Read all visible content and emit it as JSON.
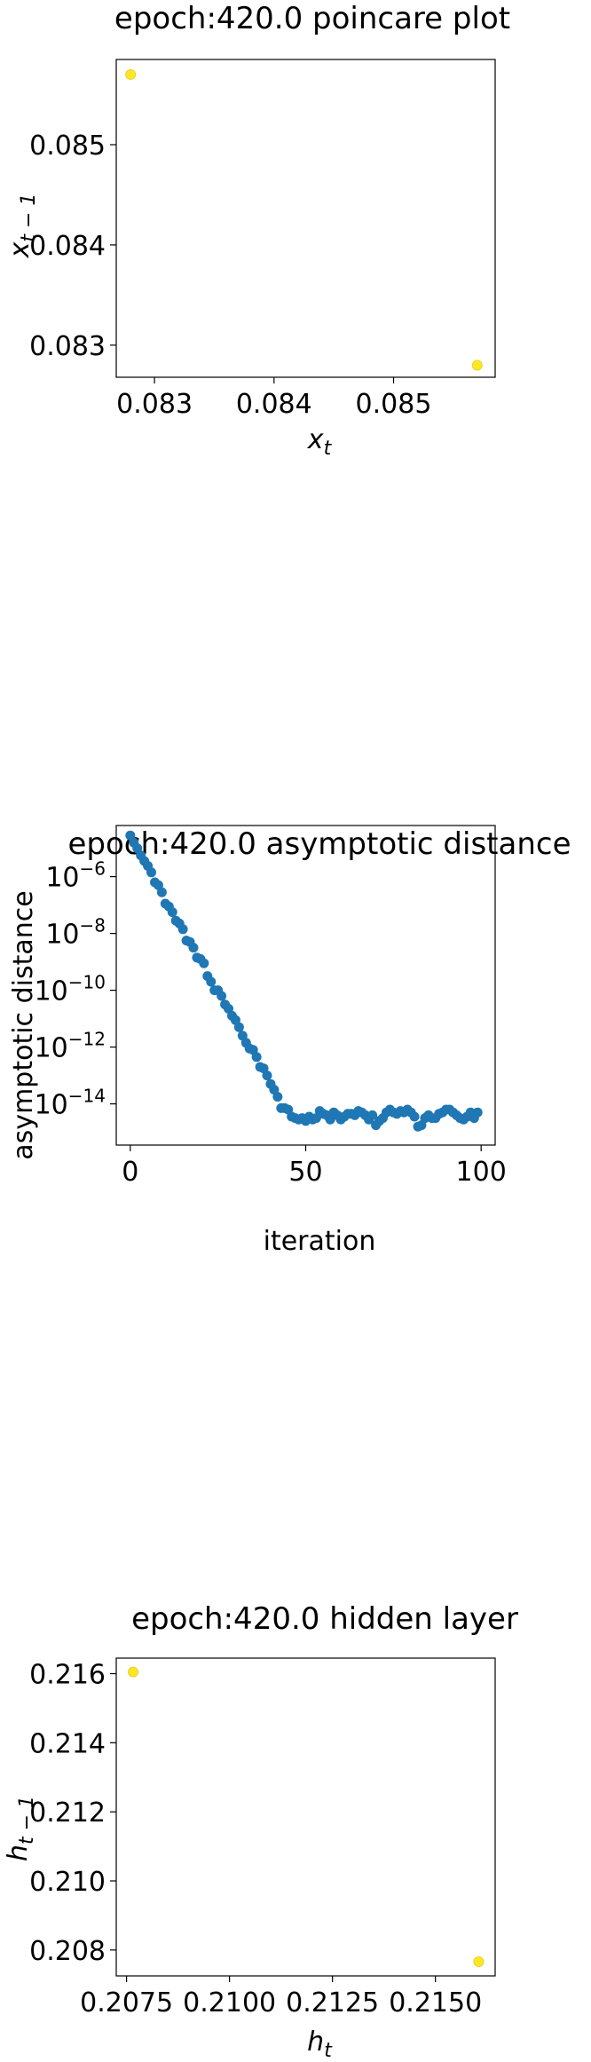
{
  "colors": {
    "point_yellow": "#FDE725",
    "point_yellow_edge": "#E8D31F",
    "point_blue": "#1F77B4",
    "axis": "#000000"
  },
  "chart_data": [
    {
      "id": "poincare",
      "type": "scatter",
      "title": "epoch:420.0 poincare plot",
      "xlabel_base": "x",
      "xlabel_sub": "t",
      "ylabel_base": "x",
      "ylabel_sub": "t − 1",
      "xlim": [
        0.08268,
        0.08585
      ],
      "ylim": [
        0.08268,
        0.08585
      ],
      "xticks": [
        0.083,
        0.084,
        0.085
      ],
      "xtick_labels": [
        "0.083",
        "0.084",
        "0.085"
      ],
      "yticks": [
        0.083,
        0.084,
        0.085
      ],
      "ytick_labels": [
        "0.083",
        "0.084",
        "0.085"
      ],
      "points": [
        {
          "x": 0.0828,
          "y": 0.0857
        },
        {
          "x": 0.0857,
          "y": 0.0828
        }
      ],
      "color": "yellow"
    },
    {
      "id": "asymptotic",
      "type": "scatter",
      "title": "epoch:420.0 asymptotic distance",
      "xlabel": "iteration",
      "ylabel": "asymptotic distance",
      "yscale": "log",
      "xlim": [
        -4,
        104
      ],
      "ylim_log10": [
        -15.45,
        -4.2
      ],
      "xticks": [
        0,
        50,
        100
      ],
      "xtick_labels": [
        "0",
        "50",
        "100"
      ],
      "yticks_log10": [
        -6,
        -8,
        -10,
        -12,
        -14
      ],
      "ytick_base": "10",
      "ytick_exponents": [
        "−6",
        "−8",
        "−10",
        "−12",
        "−14"
      ],
      "x": [
        0,
        1,
        2,
        3,
        4,
        5,
        6,
        7,
        8,
        9,
        10,
        11,
        12,
        13,
        14,
        15,
        16,
        17,
        18,
        19,
        20,
        21,
        22,
        23,
        24,
        25,
        26,
        27,
        28,
        29,
        30,
        31,
        32,
        33,
        34,
        35,
        36,
        37,
        38,
        39,
        40,
        41,
        42,
        43,
        44,
        45,
        46,
        47,
        48,
        49,
        50,
        51,
        52,
        53,
        54,
        55,
        56,
        57,
        58,
        59,
        60,
        61,
        62,
        63,
        64,
        65,
        66,
        67,
        68,
        69,
        70,
        71,
        72,
        73,
        74,
        75,
        76,
        77,
        78,
        79,
        80,
        81,
        82,
        83,
        84,
        85,
        86,
        87,
        88,
        89,
        90,
        91,
        92,
        93,
        94,
        95,
        96,
        97,
        98,
        99
      ],
      "y_log10": [
        -4.55,
        -4.8,
        -5.0,
        -5.25,
        -5.45,
        -5.62,
        -5.85,
        -6.2,
        -6.3,
        -6.55,
        -6.95,
        -7.05,
        -7.25,
        -7.55,
        -7.65,
        -7.85,
        -8.25,
        -8.3,
        -8.5,
        -8.85,
        -8.9,
        -9.05,
        -9.5,
        -9.7,
        -10.0,
        -10.0,
        -10.2,
        -10.5,
        -10.65,
        -10.9,
        -11.05,
        -11.3,
        -11.6,
        -11.85,
        -12.05,
        -12.1,
        -12.35,
        -12.7,
        -12.75,
        -13.0,
        -13.3,
        -13.5,
        -13.75,
        -14.15,
        -14.15,
        -14.2,
        -14.45,
        -14.5,
        -14.55,
        -14.5,
        -14.6,
        -14.45,
        -14.55,
        -14.5,
        -14.25,
        -14.35,
        -14.4,
        -14.55,
        -14.3,
        -14.4,
        -14.55,
        -14.45,
        -14.35,
        -14.35,
        -14.4,
        -14.25,
        -14.3,
        -14.4,
        -14.55,
        -14.4,
        -14.75,
        -14.6,
        -14.5,
        -14.3,
        -14.2,
        -14.3,
        -14.35,
        -14.25,
        -14.3,
        -14.2,
        -14.3,
        -14.45,
        -14.8,
        -14.75,
        -14.5,
        -14.4,
        -14.5,
        -14.5,
        -14.35,
        -14.3,
        -14.2,
        -14.2,
        -14.3,
        -14.4,
        -14.5,
        -14.55,
        -14.45,
        -14.3,
        -14.5,
        -14.3
      ],
      "color": "blue"
    },
    {
      "id": "hidden",
      "type": "scatter",
      "title": "epoch:420.0 hidden layer",
      "xlabel_base": "h",
      "xlabel_sub": "t",
      "ylabel_base": "h",
      "ylabel_sub": "t − 1",
      "xlim": [
        0.20725,
        0.21645
      ],
      "ylim": [
        0.20725,
        0.21645
      ],
      "xticks": [
        0.2075,
        0.21,
        0.2125,
        0.215
      ],
      "xtick_labels": [
        "0.2075",
        "0.2100",
        "0.2125",
        "0.2150"
      ],
      "yticks": [
        0.208,
        0.21,
        0.212,
        0.214,
        0.216
      ],
      "ytick_labels": [
        "0.208",
        "0.210",
        "0.212",
        "0.214",
        "0.216"
      ],
      "points": [
        {
          "x": 0.20766,
          "y": 0.21605
        },
        {
          "x": 0.21605,
          "y": 0.20766
        }
      ],
      "color": "yellow"
    }
  ]
}
